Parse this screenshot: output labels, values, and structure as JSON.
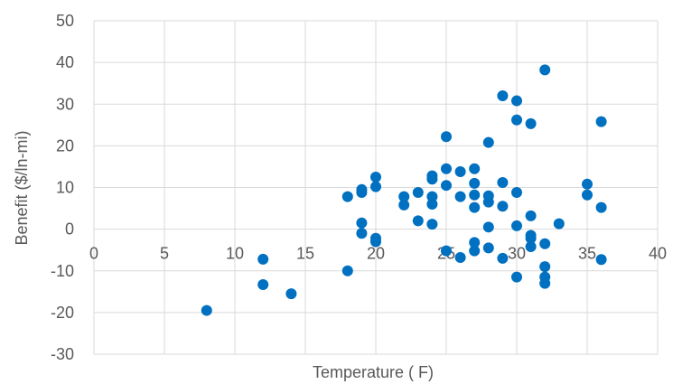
{
  "chart_data": {
    "type": "scatter",
    "title": "",
    "xlabel": "Temperature ( F)",
    "ylabel": "Benefit ($/ln-mi)",
    "xlim": [
      0,
      40
    ],
    "ylim": [
      -30,
      50
    ],
    "xticks": [
      0,
      5,
      10,
      15,
      20,
      25,
      30,
      35,
      40
    ],
    "yticks": [
      -30,
      -20,
      -10,
      0,
      10,
      20,
      30,
      40,
      50
    ],
    "grid": true,
    "marker_color": "#0070c0",
    "points": [
      [
        8,
        -19.5
      ],
      [
        12,
        -7.2
      ],
      [
        12,
        -13.3
      ],
      [
        14,
        -15.5
      ],
      [
        18,
        7.8
      ],
      [
        18,
        -10
      ],
      [
        19,
        9.5
      ],
      [
        19,
        8.8
      ],
      [
        19,
        1.5
      ],
      [
        19,
        -1
      ],
      [
        20,
        12.5
      ],
      [
        20,
        10.2
      ],
      [
        20,
        -2.2
      ],
      [
        20,
        -3
      ],
      [
        22,
        7.8
      ],
      [
        22,
        5.8
      ],
      [
        23,
        8.8
      ],
      [
        23,
        2
      ],
      [
        24,
        12.8
      ],
      [
        24,
        12
      ],
      [
        24,
        7.8
      ],
      [
        24,
        6
      ],
      [
        24,
        1.2
      ],
      [
        25,
        22.2
      ],
      [
        25,
        14.5
      ],
      [
        25,
        10.5
      ],
      [
        25,
        -5.2
      ],
      [
        26,
        13.8
      ],
      [
        26,
        7.8
      ],
      [
        26,
        -6.8
      ],
      [
        27,
        14.5
      ],
      [
        27,
        11
      ],
      [
        27,
        8.2
      ],
      [
        27,
        5.2
      ],
      [
        27,
        -3.2
      ],
      [
        27,
        -5.2
      ],
      [
        28,
        20.8
      ],
      [
        28,
        8
      ],
      [
        28,
        6.5
      ],
      [
        28,
        0.5
      ],
      [
        28,
        -4.5
      ],
      [
        29,
        32
      ],
      [
        29,
        11.2
      ],
      [
        29,
        5.5
      ],
      [
        29,
        -7
      ],
      [
        30,
        30.8
      ],
      [
        30,
        26.2
      ],
      [
        30,
        8.8
      ],
      [
        30,
        0.8
      ],
      [
        30,
        -11.5
      ],
      [
        31,
        25.3
      ],
      [
        31,
        3.2
      ],
      [
        31,
        -1.5
      ],
      [
        31,
        -2.2
      ],
      [
        31,
        -4.2
      ],
      [
        32,
        38.2
      ],
      [
        32,
        -3.5
      ],
      [
        32,
        -9
      ],
      [
        32,
        -11.5
      ],
      [
        32,
        -13
      ],
      [
        33,
        1.3
      ],
      [
        35,
        10.8
      ],
      [
        35,
        8.2
      ],
      [
        36,
        25.8
      ],
      [
        36,
        5.2
      ],
      [
        36,
        -7.3
      ]
    ]
  }
}
